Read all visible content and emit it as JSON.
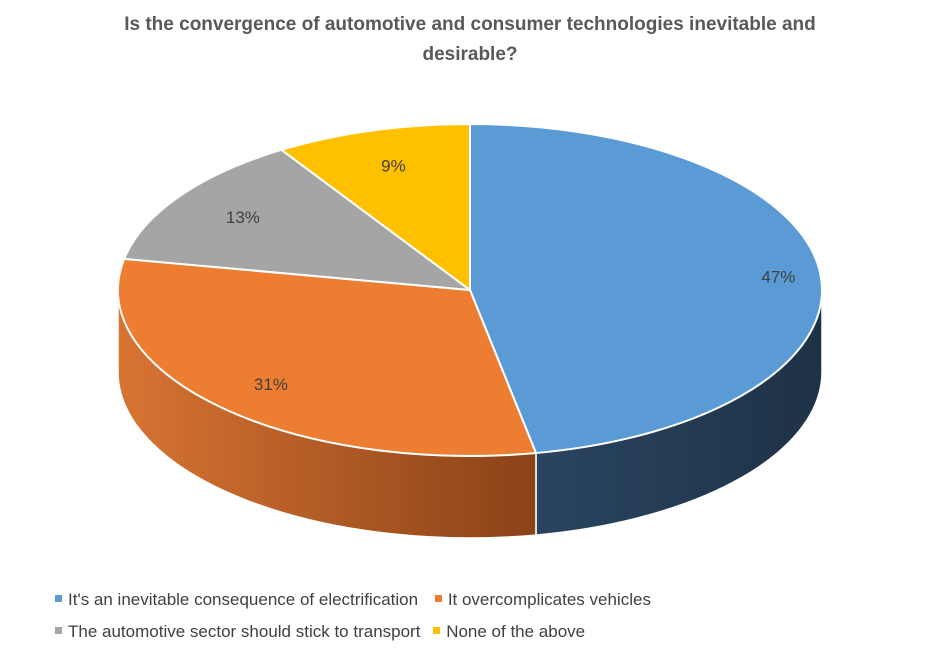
{
  "chart_data": {
    "type": "pie",
    "title": "Is the convergence of automotive and consumer technologies inevitable and desirable?",
    "legend_position": "bottom",
    "slices": [
      {
        "label": "It's an inevitable consequence of electrification",
        "value": 47,
        "data_label": "47%",
        "color": "#5B9BD5",
        "side_color": "#223A53"
      },
      {
        "label": "It overcomplicates vehicles",
        "value": 31,
        "data_label": "31%",
        "color": "#ED7D31",
        "side_color": "#A5501E"
      },
      {
        "label": "The automotive sector should stick to transport",
        "value": 13,
        "data_label": "13%",
        "color": "#A5A5A5",
        "side_color": "#6E6E6E"
      },
      {
        "label": "None of the above",
        "value": 9,
        "data_label": "9%",
        "color": "#FFC000",
        "side_color": "#A67C00"
      }
    ]
  }
}
